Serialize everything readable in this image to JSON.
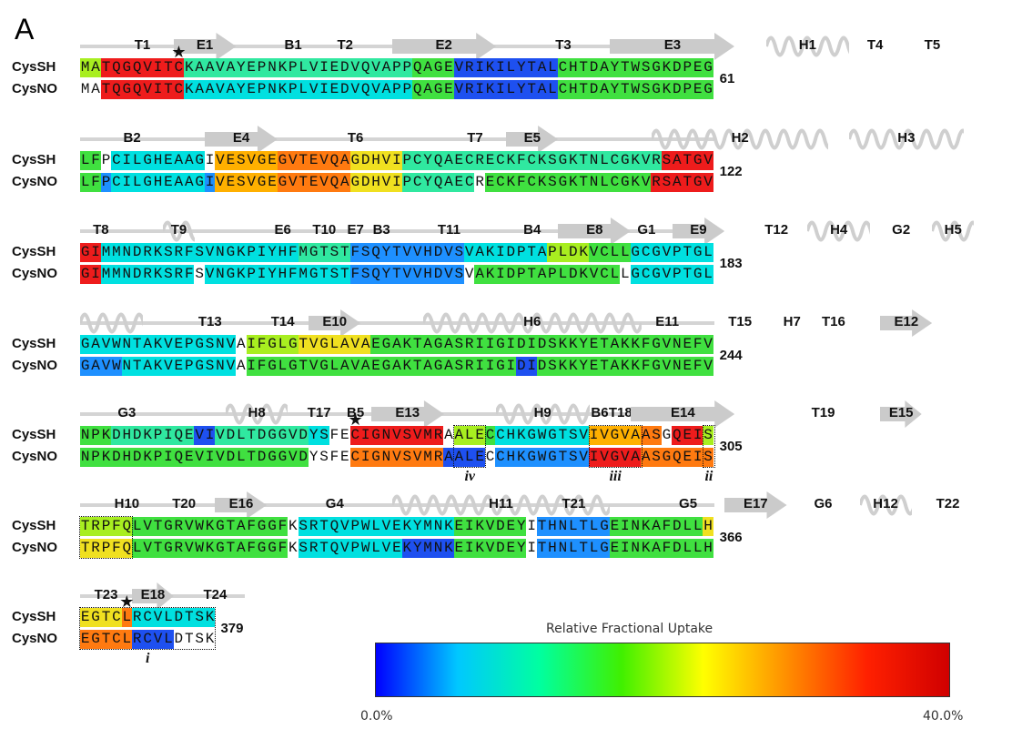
{
  "panel_letter": "A",
  "colorbar": {
    "title": "Relative Fractional Uptake",
    "min_label": "0.0%",
    "max_label": "40.0%",
    "stops": [
      "#0000ff",
      "#00c8ff",
      "#00ffa0",
      "#40f000",
      "#ffff00",
      "#ff9000",
      "#ff2000",
      "#d00000"
    ]
  },
  "level_colors": {
    "0": "#1e50f0",
    "1": "#1e90ff",
    "2": "#00e0e0",
    "3": "#30e8a0",
    "4": "#40e040",
    "5": "#a8ee20",
    "6": "#f0e020",
    "7": "#ffb000",
    "8": "#ff7a10",
    "9": "#ee1c1c"
  },
  "labels": {
    "cyssh": "CysSH",
    "cysno": "CysNO"
  },
  "blocks": [
    {
      "end_number": "61",
      "ss": [
        {
          "type": "coil",
          "label": "T1",
          "start": 4,
          "end": 7
        },
        {
          "type": "strand",
          "label": "E1",
          "start": 9,
          "end": 14
        },
        {
          "type": "coil",
          "label": "B1",
          "start": 20,
          "end": 20
        },
        {
          "type": "coil",
          "label": "T2",
          "start": 24,
          "end": 26
        },
        {
          "type": "strand",
          "label": "E2",
          "start": 30,
          "end": 39
        },
        {
          "type": "coil",
          "label": "T3",
          "start": 45,
          "end": 47
        },
        {
          "type": "strand",
          "label": "E3",
          "start": 51,
          "end": 62
        },
        {
          "type": "helix",
          "label": "H1",
          "start": 66,
          "end": 73
        },
        {
          "type": "coil",
          "label": "T4",
          "start": 75,
          "end": 77
        },
        {
          "type": "coil",
          "label": "T5",
          "start": 80,
          "end": 83
        }
      ],
      "cyssh": {
        "seq": "MATQGQVITCKAAVAYEPNKPLVIEDVQVAPPQAGEVRIKILYTALCHTDAYTWSGKDPEG",
        "segs": [
          [
            0,
            1,
            5
          ],
          [
            2,
            9,
            9
          ],
          [
            10,
            31,
            3
          ],
          [
            32,
            35,
            4
          ],
          [
            36,
            45,
            0
          ],
          [
            46,
            60,
            4
          ]
        ]
      },
      "cysno": {
        "seq": "MATQGQVITCKAAVAYEPNKPLVIEDVQVAPPQAGEVRIKILYTALCHTDAYTWSGKDPEG",
        "segs": [
          [
            2,
            9,
            9
          ],
          [
            10,
            31,
            2
          ],
          [
            32,
            35,
            4
          ],
          [
            36,
            45,
            0
          ],
          [
            46,
            60,
            4
          ]
        ]
      },
      "stars": [
        {
          "row": "cyssh",
          "pos": 9
        }
      ],
      "boxes": []
    },
    {
      "end_number": "122",
      "ss": [
        {
          "type": "coil",
          "label": "B2",
          "start": 3,
          "end": 6
        },
        {
          "type": "strand",
          "label": "E4",
          "start": 12,
          "end": 18
        },
        {
          "type": "coil",
          "label": "T6",
          "start": 24,
          "end": 28
        },
        {
          "type": "coil",
          "label": "T7",
          "start": 36,
          "end": 39
        },
        {
          "type": "strand",
          "label": "E5",
          "start": 41,
          "end": 45
        },
        {
          "type": "helix",
          "label": "H2",
          "start": 55,
          "end": 71
        },
        {
          "type": "helix",
          "label": "H3",
          "start": 74,
          "end": 84
        }
      ],
      "cyssh": {
        "seq": "LFPCILGHEAAGIVESVGEGVTEVQAGDHVIPCYQAECRECKFCKSGKTNLCGKVRSATGV",
        "segs": [
          [
            0,
            1,
            4
          ],
          [
            3,
            11,
            2
          ],
          [
            13,
            18,
            7
          ],
          [
            19,
            25,
            8
          ],
          [
            26,
            30,
            6
          ],
          [
            31,
            55,
            3
          ],
          [
            56,
            60,
            9
          ]
        ]
      },
      "cysno": {
        "seq": "LFPCILGHEAAGIVESVGEGVTEVQAGDHVIPCYQAECRECKFCKSGKTNLCGKVRSATGV",
        "segs": [
          [
            0,
            1,
            4
          ],
          [
            2,
            2,
            1
          ],
          [
            3,
            11,
            2
          ],
          [
            12,
            12,
            1
          ],
          [
            13,
            18,
            7
          ],
          [
            19,
            25,
            8
          ],
          [
            26,
            30,
            6
          ],
          [
            31,
            37,
            3
          ],
          [
            39,
            54,
            4
          ],
          [
            55,
            60,
            9
          ]
        ]
      },
      "stars": [],
      "boxes": []
    },
    {
      "end_number": "183",
      "ss": [
        {
          "type": "coil",
          "label": "T8",
          "start": 1,
          "end": 2
        },
        {
          "type": "helix",
          "label": "T9",
          "start": 8,
          "end": 10
        },
        {
          "type": "coil",
          "label": "E6",
          "start": 18,
          "end": 20
        },
        {
          "type": "coil",
          "label": "T10",
          "start": 22,
          "end": 24
        },
        {
          "type": "coil",
          "label": "E7",
          "start": 26,
          "end": 26
        },
        {
          "type": "coil",
          "label": "B3",
          "start": 28,
          "end": 29
        },
        {
          "type": "coil",
          "label": "T11",
          "start": 33,
          "end": 37
        },
        {
          "type": "coil",
          "label": "B4",
          "start": 42,
          "end": 44
        },
        {
          "type": "strand",
          "label": "E8",
          "start": 46,
          "end": 52
        },
        {
          "type": "coil",
          "label": "G1",
          "start": 53,
          "end": 55
        },
        {
          "type": "strand",
          "label": "E9",
          "start": 57,
          "end": 61
        },
        {
          "type": "coil",
          "label": "T12",
          "start": 65,
          "end": 68
        },
        {
          "type": "helix",
          "label": "H4",
          "start": 70,
          "end": 75
        },
        {
          "type": "coil",
          "label": "G2",
          "start": 77,
          "end": 80
        },
        {
          "type": "helix",
          "label": "H5",
          "start": 82,
          "end": 85
        }
      ],
      "cyssh": {
        "seq": "GIMMNDRKSRFSVNGKPIYHFMGTSTFSQYTVVHDVSVAKIDPTAPLDKVCLLGCGVPTGL",
        "segs": [
          [
            0,
            1,
            9
          ],
          [
            2,
            20,
            2
          ],
          [
            21,
            25,
            3
          ],
          [
            26,
            36,
            1
          ],
          [
            37,
            44,
            2
          ],
          [
            45,
            48,
            5
          ],
          [
            49,
            52,
            4
          ],
          [
            53,
            60,
            2
          ]
        ]
      },
      "cysno": {
        "seq": "GIMMNDRKSRFSVNGKPIYHFMGTSTFSQYTVVHDVSVAKIDPTAPLDKVCLLGCGVPTGL",
        "segs": [
          [
            0,
            1,
            9
          ],
          [
            2,
            10,
            2
          ],
          [
            12,
            25,
            2
          ],
          [
            26,
            36,
            1
          ],
          [
            38,
            51,
            4
          ],
          [
            53,
            60,
            2
          ]
        ]
      },
      "stars": [],
      "boxes": []
    },
    {
      "end_number": "244",
      "ss": [
        {
          "type": "helix",
          "label": "",
          "start": 0,
          "end": 5
        },
        {
          "type": "coil",
          "label": "T13",
          "start": 10,
          "end": 14
        },
        {
          "type": "coil",
          "label": "T14",
          "start": 18,
          "end": 20
        },
        {
          "type": "strand",
          "label": "E10",
          "start": 22,
          "end": 26
        },
        {
          "type": "helix",
          "label": "H6",
          "start": 33,
          "end": 53
        },
        {
          "type": "coil",
          "label": "E11",
          "start": 55,
          "end": 57
        },
        {
          "type": "coil",
          "label": "T15",
          "start": 62,
          "end": 64
        },
        {
          "type": "coil",
          "label": "H7",
          "start": 67,
          "end": 69
        },
        {
          "type": "coil",
          "label": "T16",
          "start": 71,
          "end": 73
        },
        {
          "type": "strand",
          "label": "E12",
          "start": 77,
          "end": 81
        }
      ],
      "cyssh": {
        "seq": "GAVWNTAKVEPGSNVAIFGLGTVGLAVAEGAKTAGASRIIGIDIDSKKYETAKKFGVNEFV",
        "segs": [
          [
            0,
            14,
            2
          ],
          [
            16,
            20,
            5
          ],
          [
            21,
            27,
            6
          ],
          [
            28,
            60,
            4
          ]
        ]
      },
      "cysno": {
        "seq": "GAVWNTAKVEPGSNVAIFGLGTVGLAVAEGAKTAGASRIIGIDIDSKKYETAKKFGVNEFV",
        "segs": [
          [
            0,
            3,
            1
          ],
          [
            4,
            14,
            2
          ],
          [
            16,
            41,
            4
          ],
          [
            42,
            43,
            0
          ],
          [
            44,
            60,
            4
          ]
        ]
      },
      "stars": [],
      "boxes": []
    },
    {
      "end_number": "305",
      "ss": [
        {
          "type": "coil",
          "label": "G3",
          "start": 2,
          "end": 6
        },
        {
          "type": "helix",
          "label": "H8",
          "start": 14,
          "end": 19
        },
        {
          "type": "coil",
          "label": "T17",
          "start": 21,
          "end": 24
        },
        {
          "type": "coil",
          "label": "B5",
          "start": 26,
          "end": 26
        },
        {
          "type": "strand",
          "label": "E13",
          "start": 28,
          "end": 34
        },
        {
          "type": "helix",
          "label": "H9",
          "start": 40,
          "end": 48
        },
        {
          "type": "coil",
          "label": "B6",
          "start": 49,
          "end": 50
        },
        {
          "type": "coil",
          "label": "T18",
          "start": 51,
          "end": 52
        },
        {
          "type": "strand",
          "label": "E14",
          "start": 53,
          "end": 62
        },
        {
          "type": "coil",
          "label": "T19",
          "start": 70,
          "end": 72
        },
        {
          "type": "strand",
          "label": "E15",
          "start": 77,
          "end": 80
        }
      ],
      "cyssh": {
        "seq": "NPKDHDKPIQEVIVDLTDGGVDYSFECIGNVSVMRAALECCHKGWGTSVIVGVAASGQEIS",
        "segs": [
          [
            0,
            2,
            4
          ],
          [
            3,
            10,
            3
          ],
          [
            11,
            12,
            0
          ],
          [
            13,
            21,
            3
          ],
          [
            22,
            23,
            2
          ],
          [
            26,
            34,
            9
          ],
          [
            36,
            38,
            5
          ],
          [
            39,
            39,
            4
          ],
          [
            40,
            48,
            2
          ],
          [
            49,
            53,
            7
          ],
          [
            54,
            55,
            8
          ],
          [
            57,
            59,
            9
          ],
          [
            60,
            60,
            5
          ]
        ]
      },
      "cysno": {
        "seq": "NPKDHDKPIQEVIVDLTDGGVDYSFECIGNVSVMRAALECCHKGWGTSVIVGVAASGQEIS",
        "segs": [
          [
            0,
            21,
            4
          ],
          [
            26,
            34,
            8
          ],
          [
            35,
            38,
            0
          ],
          [
            40,
            48,
            1
          ],
          [
            49,
            53,
            9
          ],
          [
            54,
            60,
            8
          ]
        ]
      },
      "stars": [
        {
          "row": "cyssh",
          "pos": 26
        }
      ],
      "boxes": [
        {
          "start": 36,
          "end": 38,
          "label": "iv",
          "span_rows": "both"
        },
        {
          "start": 49,
          "end": 53,
          "label": "iii",
          "span_rows": "both"
        },
        {
          "start": 60,
          "end": 60,
          "label": "ii",
          "span_rows": "both"
        }
      ]
    },
    {
      "end_number": "366",
      "ss": [
        {
          "type": "coil",
          "label": "H10",
          "start": 2,
          "end": 6
        },
        {
          "type": "coil",
          "label": "T20",
          "start": 8,
          "end": 11
        },
        {
          "type": "strand",
          "label": "E16",
          "start": 13,
          "end": 17
        },
        {
          "type": "coil",
          "label": "G4",
          "start": 21,
          "end": 27
        },
        {
          "type": "helix",
          "label": "H11",
          "start": 30,
          "end": 50
        },
        {
          "type": "coil",
          "label": "T21",
          "start": 45,
          "end": 49
        },
        {
          "type": "coil",
          "label": "G5",
          "start": 56,
          "end": 60
        },
        {
          "type": "strand",
          "label": "E17",
          "start": 62,
          "end": 67
        },
        {
          "type": "coil",
          "label": "G6",
          "start": 70,
          "end": 72
        },
        {
          "type": "helix",
          "label": "H12",
          "start": 75,
          "end": 79
        },
        {
          "type": "coil",
          "label": "T22",
          "start": 82,
          "end": 84
        }
      ],
      "cyssh": {
        "seq": "TRPFQLVTGRVWKGTAFGGFKSRTQVPWLVEKYMNKEIKVDEYITHNLTLGEINKAFDLLH",
        "segs": [
          [
            0,
            4,
            5
          ],
          [
            5,
            19,
            4
          ],
          [
            21,
            35,
            2
          ],
          [
            36,
            42,
            4
          ],
          [
            44,
            50,
            1
          ],
          [
            51,
            59,
            4
          ],
          [
            60,
            60,
            6
          ]
        ]
      },
      "cysno": {
        "seq": "TRPFQLVTGRVWKGTAFGGFKSRTQVPWLVEKYMNKEIKVDEYITHNLTLGEINKAFDLLH",
        "segs": [
          [
            0,
            4,
            6
          ],
          [
            5,
            19,
            4
          ],
          [
            21,
            30,
            2
          ],
          [
            31,
            35,
            0
          ],
          [
            36,
            42,
            4
          ],
          [
            44,
            50,
            1
          ],
          [
            51,
            60,
            4
          ]
        ]
      },
      "stars": [],
      "boxes": [
        {
          "start": 0,
          "end": 4,
          "label": "",
          "span_rows": "both"
        }
      ]
    },
    {
      "end_number": "379",
      "ss": [
        {
          "type": "coil",
          "label": "T23",
          "start": 1,
          "end": 3
        },
        {
          "type": "strand",
          "label": "E18",
          "start": 5,
          "end": 8
        },
        {
          "type": "coil",
          "label": "T24",
          "start": 11,
          "end": 14
        }
      ],
      "cyssh": {
        "seq": "EGTCLRCVLDTSK",
        "segs": [
          [
            0,
            3,
            6
          ],
          [
            4,
            4,
            8
          ],
          [
            5,
            8,
            2
          ],
          [
            9,
            12,
            2
          ]
        ]
      },
      "cysno": {
        "seq": "EGTCLRCVLDTSK",
        "segs": [
          [
            0,
            4,
            8
          ],
          [
            5,
            8,
            0
          ]
        ]
      },
      "stars": [
        {
          "row": "cyssh",
          "pos": 4
        }
      ],
      "boxes": [
        {
          "start": 0,
          "end": 12,
          "label": "i",
          "span_rows": "both"
        }
      ]
    }
  ]
}
